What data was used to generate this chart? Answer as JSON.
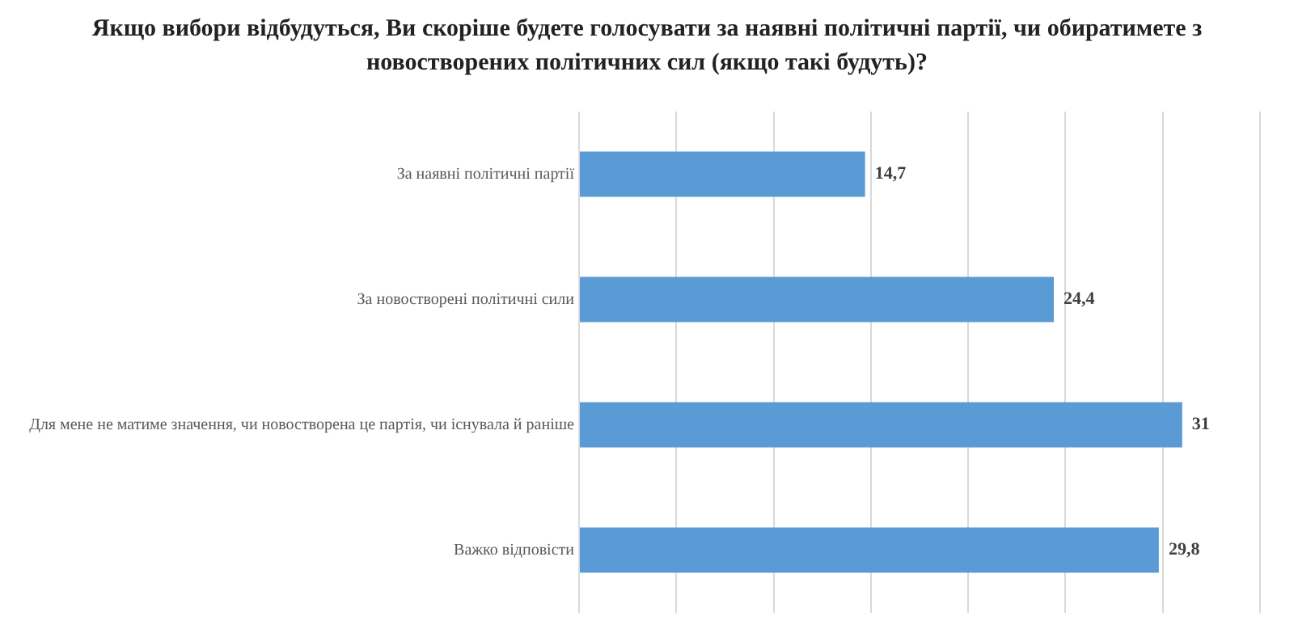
{
  "chart_data": {
    "type": "bar",
    "orientation": "horizontal",
    "title": "Якщо вибори відбудуться, Ви скоріше будете голосувати за наявні політичні партії, чи обиратимете з новостворених політичних сил (якщо такі будуть)?",
    "categories": [
      "За наявні політичні партії",
      "За новостворені політичні сили",
      "Для мене не матиме значення, чи новостворена це партія, чи існувала й раніше",
      "Важко відповісти"
    ],
    "values": [
      14.7,
      24.4,
      31,
      29.8
    ],
    "value_labels": [
      "14,7",
      "24,4",
      "31",
      "29,8"
    ],
    "color": "#5b9bd5",
    "xlim": [
      0,
      35
    ],
    "xticks": [
      {
        "value": 0,
        "label": null
      },
      {
        "value": 5,
        "label": null
      },
      {
        "value": 10,
        "label": null
      },
      {
        "value": 15,
        "label": null
      },
      {
        "value": 20,
        "label": null
      },
      {
        "value": 25,
        "label": null
      },
      {
        "value": 30,
        "label": null
      },
      {
        "value": 35,
        "label": null
      }
    ],
    "tick_labels": "y",
    "grid": "x",
    "legend": false
  }
}
